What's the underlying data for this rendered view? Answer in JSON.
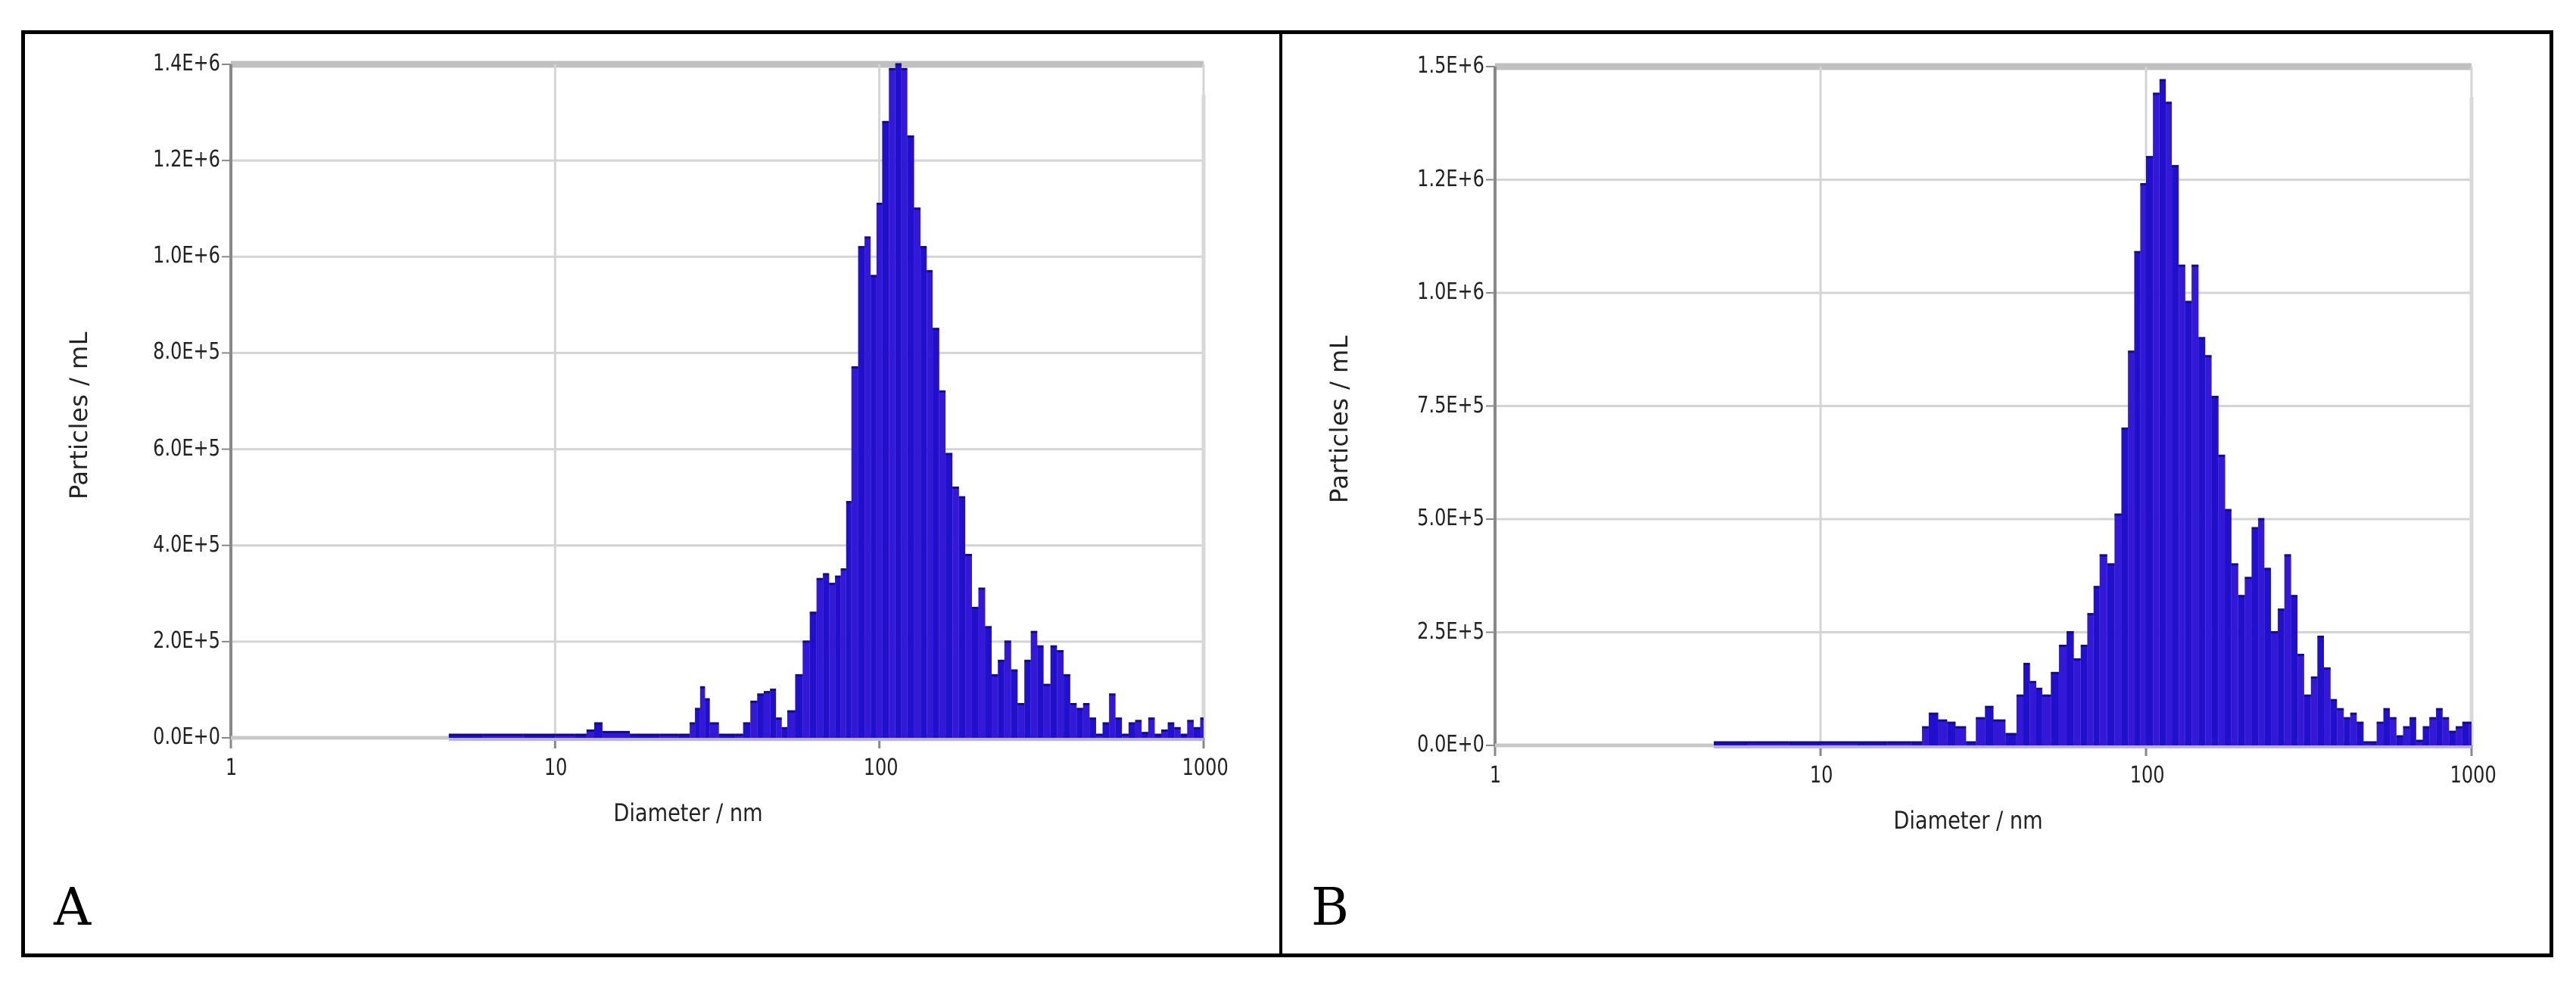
{
  "figure": {
    "panels": [
      {
        "letter": "A",
        "ylabel": "Particles / mL",
        "xlabel": "Diameter / nm"
      },
      {
        "letter": "B",
        "ylabel": "Particles / mL",
        "xlabel": "Diameter / nm"
      }
    ]
  },
  "colors": {
    "bar_fill": "#2010cc",
    "bar_fill_alt": "#3318d8",
    "bar_edge": "#140a8a",
    "baseline_fill": "#b8b0f0",
    "grid": "#d4d4d4",
    "axis": "#888888",
    "top_border": "#c0c0c0"
  },
  "chart_data": [
    {
      "panel": "A",
      "type": "bar",
      "title": "",
      "xlabel": "Diameter / nm",
      "ylabel": "Particles / mL",
      "xscale": "log",
      "xlim": [
        1,
        1000
      ],
      "ylim": [
        0,
        1400000
      ],
      "xticks": [
        "1",
        "10",
        "100",
        "1000"
      ],
      "yticks": [
        "0.0E+0",
        "2.0E+5",
        "4.0E+5",
        "6.0E+5",
        "8.0E+5",
        "1.0E+6",
        "1.2E+6",
        "1.4E+6"
      ],
      "grid": true,
      "legend": null,
      "x": [
        4.7,
        6,
        8,
        10,
        11.5,
        12.5,
        13.2,
        14,
        17,
        21,
        24,
        26,
        27,
        28,
        29,
        30,
        32,
        36,
        38,
        40,
        42,
        44,
        46,
        48,
        50,
        52,
        55,
        58,
        61,
        64,
        67,
        70,
        73,
        76,
        79,
        82,
        86,
        90,
        94,
        98,
        102,
        107,
        112,
        117,
        122,
        128,
        134,
        140,
        146,
        153,
        160,
        168,
        176,
        184,
        193,
        202,
        212,
        222,
        232,
        243,
        255,
        267,
        280,
        293,
        307,
        321,
        337,
        353,
        370,
        388,
        406,
        425,
        445,
        466,
        488,
        511,
        535,
        560,
        587,
        615,
        644,
        675,
        707,
        740,
        775,
        812,
        850,
        890,
        932,
        976
      ],
      "values": [
        2000,
        2000,
        2000,
        2000,
        3000,
        15000,
        30000,
        12000,
        3000,
        3000,
        5000,
        30000,
        60000,
        105000,
        80000,
        30000,
        5000,
        4000,
        30000,
        75000,
        90000,
        95000,
        100000,
        40000,
        20000,
        55000,
        130000,
        200000,
        260000,
        330000,
        340000,
        320000,
        335000,
        350000,
        490000,
        770000,
        1020000,
        1040000,
        960000,
        1110000,
        1280000,
        1390000,
        1400000,
        1390000,
        1250000,
        1100000,
        1020000,
        970000,
        850000,
        720000,
        590000,
        520000,
        500000,
        380000,
        270000,
        310000,
        230000,
        130000,
        160000,
        200000,
        140000,
        70000,
        160000,
        220000,
        190000,
        110000,
        190000,
        180000,
        130000,
        70000,
        60000,
        70000,
        40000,
        2000,
        30000,
        90000,
        40000,
        2000,
        30000,
        35000,
        10000,
        40000,
        2000,
        15000,
        30000,
        20000,
        5000,
        35000,
        20000,
        40000
      ]
    },
    {
      "panel": "B",
      "type": "bar",
      "title": "",
      "xlabel": "Diameter / nm",
      "ylabel": "Particles / mL",
      "xscale": "log",
      "xlim": [
        1,
        1000
      ],
      "ylim": [
        0,
        1500000
      ],
      "xticks": [
        "1",
        "10",
        "100",
        "1000"
      ],
      "yticks": [
        "0.0E+0",
        "2.5E+5",
        "5.0E+5",
        "7.5E+5",
        "1.0E+6",
        "1.2E+6",
        "1.5E+6"
      ],
      "grid": true,
      "legend": null,
      "x": [
        4.7,
        6,
        8,
        10,
        13,
        16,
        19,
        20.5,
        21.5,
        23,
        24.5,
        26,
        28,
        30,
        32,
        34,
        37,
        40,
        42,
        44,
        46,
        48,
        51,
        54,
        57,
        60,
        63,
        66,
        69,
        72,
        76,
        80,
        84,
        88,
        92,
        96,
        100,
        105,
        110,
        115,
        120,
        126,
        132,
        138,
        145,
        152,
        159,
        167,
        175,
        183,
        192,
        201,
        211,
        221,
        231,
        242,
        254,
        266,
        279,
        292,
        306,
        321,
        336,
        352,
        369,
        386,
        405,
        424,
        444,
        466,
        488,
        511,
        536,
        561,
        588,
        616,
        645,
        676,
        708,
        742,
        778,
        815,
        853,
        894,
        937,
        981
      ],
      "values": [
        2000,
        2000,
        2000,
        2000,
        2000,
        3000,
        5000,
        40000,
        70000,
        55000,
        50000,
        40000,
        5000,
        60000,
        85000,
        55000,
        25000,
        110000,
        180000,
        140000,
        125000,
        110000,
        160000,
        220000,
        250000,
        190000,
        220000,
        290000,
        350000,
        420000,
        400000,
        510000,
        700000,
        870000,
        1090000,
        1240000,
        1300000,
        1440000,
        1470000,
        1420000,
        1280000,
        1060000,
        980000,
        1060000,
        900000,
        860000,
        770000,
        640000,
        520000,
        400000,
        330000,
        370000,
        480000,
        500000,
        390000,
        250000,
        300000,
        420000,
        330000,
        200000,
        110000,
        150000,
        240000,
        170000,
        100000,
        80000,
        60000,
        70000,
        50000,
        2000,
        2000,
        50000,
        80000,
        60000,
        20000,
        40000,
        60000,
        10000,
        40000,
        60000,
        80000,
        60000,
        30000,
        40000,
        50000,
        50000
      ]
    }
  ]
}
